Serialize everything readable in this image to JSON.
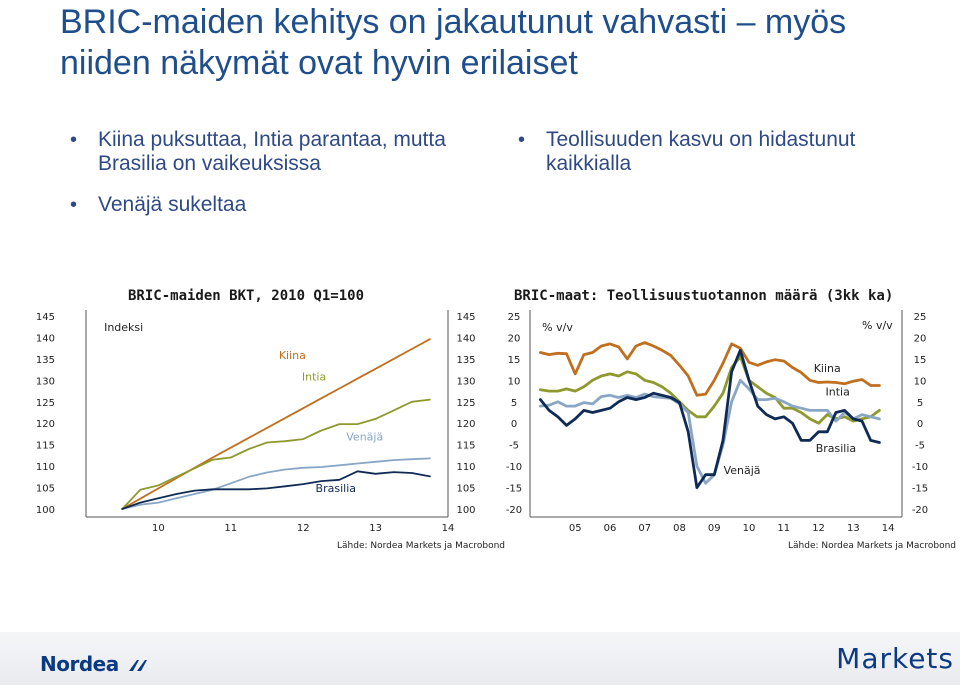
{
  "title": "BRIC-maiden kehitys on jakautunut vahvasti – myös niiden näkymät ovat hyvin erilaiset",
  "bullets_left": [
    "Kiina puksuttaa, Intia parantaa, mutta Brasilia on vaikeuksissa",
    "Venäjä sukeltaa"
  ],
  "bullets_right": [
    "Teollisuuden kasvu on hidastunut kaikkialla"
  ],
  "footer": {
    "logo_left": "Nordea",
    "logo_right": "Markets"
  },
  "colors": {
    "Kiina": "#c06f1e",
    "Intia": "#8f9a2e",
    "Venäjä": "#8aa6c7",
    "Brasilia": "#0f2b55",
    "text": "#2e4a86"
  },
  "chart_data": [
    {
      "type": "line",
      "title": "BRIC-maiden BKT, 2010 Q1=100",
      "ylabel": "Indeksi",
      "source": "Lähde: Nordea Markets ja Macrobond",
      "x_ticks": [
        "10",
        "11",
        "12",
        "13",
        "14"
      ],
      "x": [
        2010.0,
        2010.25,
        2010.5,
        2010.75,
        2011.0,
        2011.25,
        2011.5,
        2011.75,
        2012.0,
        2012.25,
        2012.5,
        2012.75,
        2013.0,
        2013.25,
        2013.5,
        2013.75,
        2014.0,
        2014.25
      ],
      "xlim": [
        2009.5,
        2014.5
      ],
      "ylim": [
        100,
        145
      ],
      "y_ticks": [
        100,
        105,
        110,
        115,
        120,
        125,
        130,
        135,
        140,
        145
      ],
      "grid": false,
      "series": [
        {
          "name": "Kiina",
          "color": "#c06f1e",
          "values": [
            100,
            102.4,
            104.8,
            107.2,
            109.6,
            112.0,
            114.3,
            116.6,
            118.9,
            121.2,
            123.5,
            125.8,
            128.1,
            130.4,
            132.7,
            135.0,
            137.3,
            139.6
          ]
        },
        {
          "name": "Intia",
          "color": "#8f9a2e",
          "values": [
            100,
            104.5,
            105.5,
            107.5,
            109.5,
            111.5,
            112.0,
            114.0,
            115.5,
            115.8,
            116.3,
            118.3,
            119.8,
            119.8,
            121.0,
            123.0,
            125.0,
            125.5
          ]
        },
        {
          "name": "Venäjä",
          "color": "#8aa6c7",
          "values": [
            100,
            101.0,
            101.5,
            102.5,
            103.5,
            104.5,
            106.0,
            107.5,
            108.5,
            109.2,
            109.6,
            109.8,
            110.2,
            110.6,
            111.0,
            111.4,
            111.6,
            111.8
          ]
        },
        {
          "name": "Brasilia",
          "color": "#0f2b55",
          "values": [
            100,
            101.5,
            102.5,
            103.5,
            104.3,
            104.6,
            104.6,
            104.6,
            104.8,
            105.3,
            105.8,
            106.5,
            106.8,
            108.8,
            108.2,
            108.6,
            108.4,
            107.6
          ]
        }
      ],
      "annotations": [
        "Kiina",
        "Intia",
        "Venäjä",
        "Brasilia"
      ]
    },
    {
      "type": "line",
      "title": "BRIC-maat: Teollisuustuotannon määrä (3kk ka)",
      "ylabel": "% v/v",
      "ylabel_right": "% v/v",
      "source": "Lähde: Nordea Markets ja Macrobond",
      "x_ticks": [
        "05",
        "06",
        "07",
        "08",
        "09",
        "10",
        "11",
        "12",
        "13",
        "14"
      ],
      "x": [
        2004.5,
        2004.75,
        2005.0,
        2005.25,
        2005.5,
        2005.75,
        2006.0,
        2006.25,
        2006.5,
        2006.75,
        2007.0,
        2007.25,
        2007.5,
        2007.75,
        2008.0,
        2008.25,
        2008.5,
        2008.75,
        2009.0,
        2009.25,
        2009.5,
        2009.75,
        2010.0,
        2010.25,
        2010.5,
        2010.75,
        2011.0,
        2011.25,
        2011.5,
        2011.75,
        2012.0,
        2012.25,
        2012.5,
        2012.75,
        2013.0,
        2013.25,
        2013.5,
        2013.75,
        2014.0,
        2014.25
      ],
      "xlim": [
        2004.2,
        2014.9
      ],
      "ylim": [
        -20,
        25
      ],
      "y_ticks": [
        -20,
        -15,
        -10,
        -5,
        0,
        5,
        10,
        15,
        20,
        25
      ],
      "grid": false,
      "series": [
        {
          "name": "Kiina",
          "color": "#c06f1e",
          "values": [
            16.5,
            16.0,
            16.3,
            16.2,
            11.5,
            16.0,
            16.5,
            18.0,
            18.5,
            17.8,
            15.0,
            18.0,
            18.8,
            18.0,
            17.0,
            15.8,
            13.5,
            11.0,
            6.5,
            6.8,
            10.0,
            14.0,
            18.5,
            17.5,
            14.2,
            13.5,
            14.3,
            14.8,
            14.5,
            13.0,
            11.8,
            10.0,
            9.5,
            9.6,
            9.5,
            9.2,
            9.8,
            10.2,
            8.8,
            8.8
          ]
        },
        {
          "name": "Intia",
          "color": "#8f9a2e",
          "values": [
            7.8,
            7.5,
            7.5,
            8.0,
            7.5,
            8.5,
            10.0,
            11.0,
            11.5,
            11.0,
            12.0,
            11.5,
            10.0,
            9.5,
            8.5,
            7.0,
            5.0,
            3.0,
            1.5,
            1.5,
            4.0,
            7.0,
            13.0,
            15.5,
            10.0,
            8.5,
            7.0,
            6.0,
            3.5,
            3.5,
            2.5,
            1.0,
            0.0,
            2.0,
            1.0,
            1.5,
            0.5,
            1.0,
            1.5,
            3.0
          ]
        },
        {
          "name": "Venäjä",
          "color": "#8aa6c7",
          "values": [
            4.0,
            4.2,
            5.0,
            4.0,
            4.0,
            4.8,
            4.5,
            6.2,
            6.5,
            6.0,
            6.5,
            6.0,
            6.8,
            6.2,
            6.0,
            5.8,
            4.5,
            2.5,
            -10.0,
            -14.0,
            -12.0,
            -5.0,
            5.0,
            10.0,
            8.0,
            5.5,
            5.5,
            5.8,
            5.0,
            4.0,
            3.5,
            3.0,
            3.0,
            3.0,
            0.5,
            2.5,
            1.0,
            2.0,
            1.5,
            1.0
          ]
        },
        {
          "name": "Brasilia",
          "color": "#0f2b55",
          "values": [
            5.5,
            3.0,
            1.5,
            -0.5,
            1.0,
            3.0,
            2.5,
            3.0,
            3.5,
            5.0,
            6.0,
            5.5,
            6.0,
            7.0,
            6.5,
            6.0,
            4.8,
            -2.0,
            -15.0,
            -12.0,
            -12.0,
            -4.0,
            12.0,
            17.0,
            10.0,
            4.0,
            2.0,
            1.0,
            1.5,
            0.0,
            -4.0,
            -4.0,
            -2.0,
            -2.0,
            2.5,
            3.0,
            1.0,
            0.5,
            -4.0,
            -4.5
          ]
        }
      ],
      "annotations": [
        "Kiina",
        "Intia",
        "Venäjä",
        "Brasilia"
      ]
    }
  ]
}
